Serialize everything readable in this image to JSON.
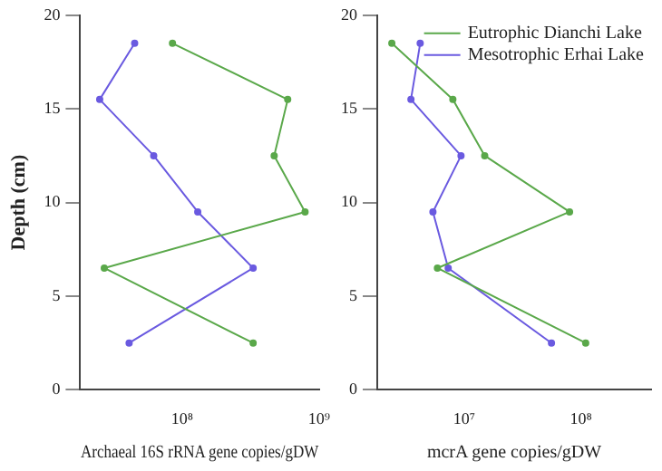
{
  "chart_data": [
    {
      "type": "line",
      "xlabel": "Archaeal 16S rRNA gene copies/gDW",
      "ylabel": "Depth (cm)",
      "log": "x",
      "xlim": [
        18000000,
        1000000000
      ],
      "xticks": [
        {
          "value": 100000000,
          "label": "10⁸"
        },
        {
          "value": 1000000000,
          "label": "10⁹"
        }
      ],
      "ylim": [
        0,
        20
      ],
      "yticks": [
        0,
        5,
        10,
        15,
        20
      ],
      "grid": false,
      "legend": false,
      "marker": "circle",
      "line_style": "solid",
      "series": [
        {
          "color": "#5aa84a",
          "x": [
            85000000,
            590000000,
            470000000,
            790000000,
            27000000,
            330000000
          ],
          "values": [
            18.5,
            15.5,
            12.5,
            9.5,
            6.5,
            2.5
          ]
        },
        {
          "color": "#6a5ae0",
          "x": [
            45000000,
            25000000,
            62000000,
            130000000,
            330000000,
            41000000
          ],
          "values": [
            18.5,
            15.5,
            12.5,
            9.5,
            6.5,
            2.5
          ]
        }
      ]
    },
    {
      "type": "line",
      "xlabel": "mcrA gene copies/gDW",
      "log": "x",
      "xlim": [
        1800000,
        400000000
      ],
      "xticks": [
        {
          "value": 10000000,
          "label": "10⁷"
        },
        {
          "value": 100000000,
          "label": "10⁸"
        }
      ],
      "ylim": [
        0,
        20
      ],
      "yticks": [
        0,
        5,
        10,
        15,
        20
      ],
      "grid": false,
      "legend": "top right",
      "marker": "circle",
      "line_style": "solid",
      "series": [
        {
          "name": "Eutrophic Dianchi Lake",
          "color": "#5aa84a",
          "x": [
            2400000,
            8000000,
            15000000,
            80000000,
            5900000,
            110000000
          ],
          "values": [
            18.5,
            15.5,
            12.5,
            9.5,
            6.5,
            2.5
          ]
        },
        {
          "name": "Mesotrophic Erhai Lake",
          "color": "#6a5ae0",
          "x": [
            4200000,
            3500000,
            9400000,
            5400000,
            7300000,
            56000000
          ],
          "values": [
            18.5,
            15.5,
            12.5,
            9.5,
            6.5,
            2.5
          ]
        }
      ]
    }
  ]
}
